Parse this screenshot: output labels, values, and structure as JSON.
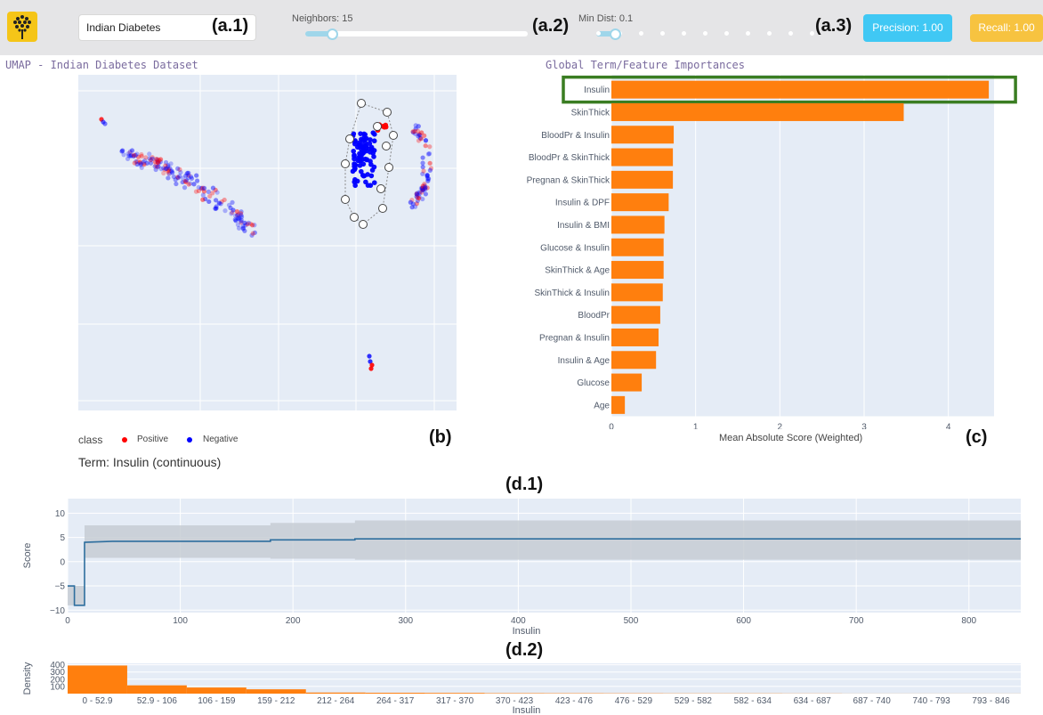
{
  "toolbar": {
    "dataset_value": "Indian Diabetes",
    "tag_a1": "(a.1)",
    "tag_a2": "(a.2)",
    "tag_a3": "(a.3)",
    "neighbors_label": "Neighbors: 15",
    "neighbors_fraction": 0.12,
    "min_dist_label": "Min Dist: 0.1",
    "min_dist_fraction": 0.05,
    "min_dist_steps": 11,
    "precision_label": "Precision: 1.00",
    "recall_label": "Recall: 1.00",
    "colors": {
      "precision": "#40c8f4",
      "recall": "#f7c340",
      "logo": "#f5c518"
    }
  },
  "umap": {
    "title": "UMAP - Indian Diabetes Dataset",
    "legend_title": "class",
    "legend_positive": "Positive",
    "legend_negative": "Negative",
    "tag": "(b)",
    "colors": {
      "positive": "#ff0000",
      "negative": "#0000ff"
    }
  },
  "importance": {
    "title": "Global Term/Feature Importances",
    "tag": "(c)",
    "highlight_color": "#3a7d22",
    "bar_color": "#ff7f0e",
    "chart_data": {
      "type": "bar",
      "orientation": "horizontal",
      "categories": [
        "Insulin",
        "SkinThick",
        "BloodPr & Insulin",
        "BloodPr & SkinThick",
        "Pregnan & SkinThick",
        "Insulin & DPF",
        "Insulin & BMI",
        "Glucose & Insulin",
        "SkinThick & Age",
        "SkinThick & Insulin",
        "BloodPr",
        "Pregnan & Insulin",
        "Insulin & Age",
        "Glucose",
        "Age"
      ],
      "values": [
        4.48,
        3.47,
        0.74,
        0.73,
        0.73,
        0.68,
        0.63,
        0.62,
        0.62,
        0.61,
        0.58,
        0.56,
        0.53,
        0.36,
        0.16
      ],
      "xlabel": "Mean Absolute Score (Weighted)",
      "ticks": [
        0,
        1,
        2,
        3,
        4
      ],
      "xlim": [
        0,
        4.5
      ],
      "highlighted": "Insulin"
    }
  },
  "term": {
    "title": "Term: Insulin (continuous)",
    "tag_d1": "(d.1)",
    "tag_d2": "(d.2)"
  },
  "shape": {
    "chart_data": {
      "type": "line",
      "xlabel": "Insulin",
      "ylabel": "Score",
      "xlim": [
        0,
        846
      ],
      "ylim": [
        -10.5,
        13
      ],
      "xticks": [
        0,
        100,
        200,
        300,
        400,
        500,
        600,
        700,
        800
      ],
      "yticks": [
        -10,
        -5,
        0,
        5,
        10
      ],
      "x": [
        0,
        6,
        6,
        15,
        15,
        40,
        180,
        180,
        255,
        255,
        846
      ],
      "y": [
        -5,
        -5,
        -9,
        -9,
        4,
        4.2,
        4.2,
        4.5,
        4.5,
        4.7,
        4.7
      ],
      "band_x": [
        0,
        15,
        15,
        180,
        180,
        255,
        255,
        846
      ],
      "band_upper": [
        -5,
        -5,
        7.5,
        7.5,
        8,
        8,
        8.5,
        8.5
      ],
      "band_lower": [
        -9,
        -9,
        0.8,
        0.8,
        0.6,
        0.6,
        0.4,
        0.4
      ],
      "line_color": "#2e6e9e",
      "band_color": "#c7ccd4"
    }
  },
  "density": {
    "chart_data": {
      "type": "bar",
      "categories": [
        "0 - 52.9",
        "52.9 - 106",
        "106 - 159",
        "159 - 212",
        "212 - 264",
        "264 - 317",
        "317 - 370",
        "370 - 423",
        "423 - 476",
        "476 - 529",
        "529 - 582",
        "582 - 634",
        "634 - 687",
        "687 - 740",
        "740 - 793",
        "793 - 846"
      ],
      "values": [
        390,
        115,
        85,
        60,
        15,
        12,
        10,
        6,
        5,
        4,
        3,
        3,
        2,
        1,
        1,
        1
      ],
      "xlabel": "Insulin",
      "ylabel": "Density",
      "yticks": [
        100,
        200,
        300,
        400
      ],
      "ylim": [
        0,
        420
      ],
      "bar_color": "#ff7f0e"
    }
  }
}
